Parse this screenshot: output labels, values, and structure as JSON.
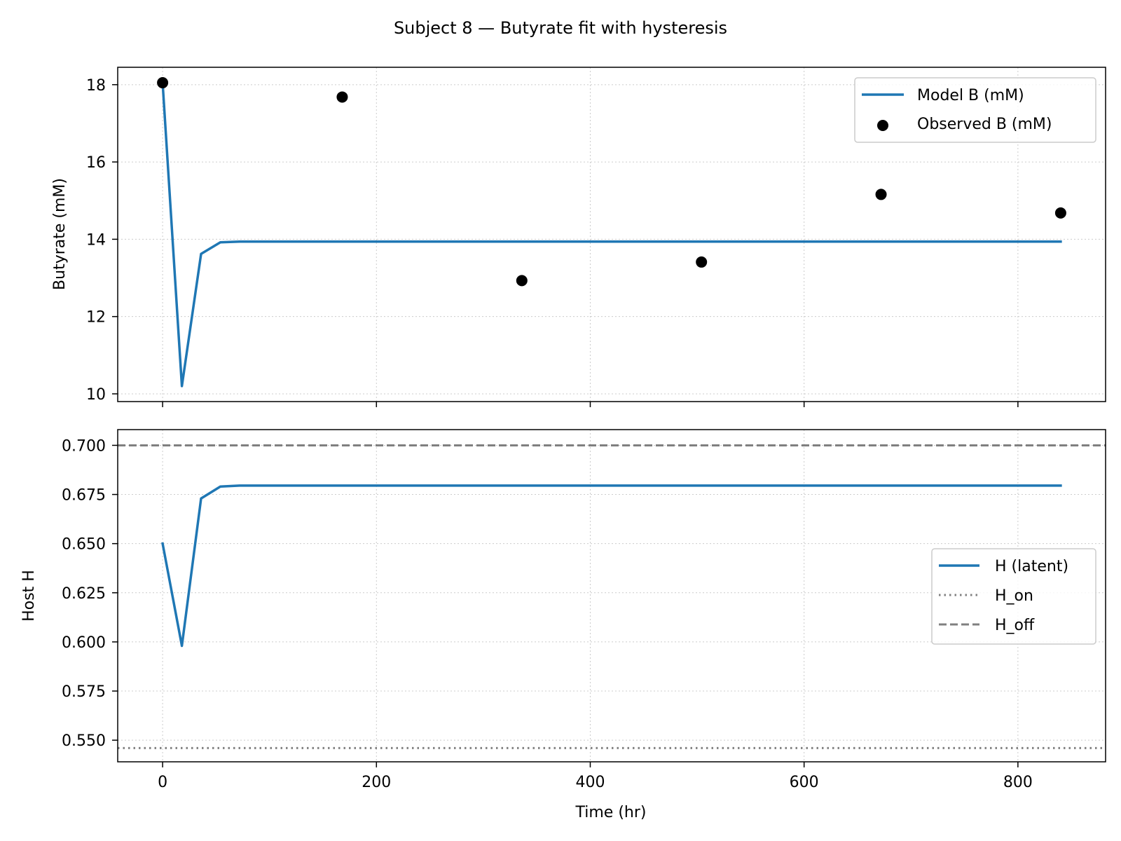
{
  "title": "Subject 8 — Butyrate fit with hysteresis",
  "colors": {
    "model": "#1f77b4",
    "observed": "#000000",
    "threshold": "#808080",
    "grid": "#cccccc"
  },
  "chart_data": [
    {
      "type": "line",
      "ylabel": "Butyrate (mM)",
      "xlabel": "",
      "xlim": [
        -42,
        882
      ],
      "ylim": [
        9.8,
        18.45
      ],
      "xticks": [
        0,
        200,
        400,
        600,
        800
      ],
      "yticks": [
        10,
        12,
        14,
        16,
        18
      ],
      "grid": true,
      "legend_position": "upper right",
      "legend": [
        "Model B (mM)",
        "Observed B (mM)"
      ],
      "series": [
        {
          "name": "Model B (mM)",
          "style": "line",
          "x": [
            0,
            18,
            36,
            54,
            72,
            90,
            120,
            200,
            400,
            600,
            800,
            840
          ],
          "y": [
            18.05,
            10.2,
            13.62,
            13.92,
            13.94,
            13.94,
            13.94,
            13.94,
            13.94,
            13.94,
            13.94,
            13.94
          ]
        },
        {
          "name": "Observed B (mM)",
          "style": "scatter",
          "x": [
            0,
            168,
            336,
            504,
            672,
            840
          ],
          "y": [
            18.05,
            17.68,
            12.93,
            13.41,
            15.16,
            14.68
          ]
        }
      ]
    },
    {
      "type": "line",
      "ylabel": "Host H",
      "xlabel": "Time (hr)",
      "xlim": [
        -42,
        882
      ],
      "ylim": [
        0.539,
        0.708
      ],
      "xticks": [
        0,
        200,
        400,
        600,
        800
      ],
      "yticks": [
        0.55,
        0.575,
        0.6,
        0.625,
        0.65,
        0.675,
        0.7
      ],
      "ytick_labels": [
        "0.550",
        "0.575",
        "0.600",
        "0.625",
        "0.650",
        "0.675",
        "0.700"
      ],
      "grid": true,
      "legend_position": "center right",
      "legend": [
        "H (latent)",
        "H_on",
        "H_off"
      ],
      "series": [
        {
          "name": "H (latent)",
          "style": "line",
          "x": [
            0,
            18,
            36,
            54,
            72,
            90,
            120,
            200,
            400,
            600,
            800,
            840
          ],
          "y": [
            0.65,
            0.598,
            0.673,
            0.679,
            0.6795,
            0.6795,
            0.6795,
            0.6795,
            0.6795,
            0.6795,
            0.6795,
            0.6795
          ]
        }
      ],
      "hlines": [
        {
          "name": "H_on",
          "y": 0.546,
          "dash": "dotted"
        },
        {
          "name": "H_off",
          "y": 0.7,
          "dash": "dashed"
        }
      ]
    }
  ]
}
